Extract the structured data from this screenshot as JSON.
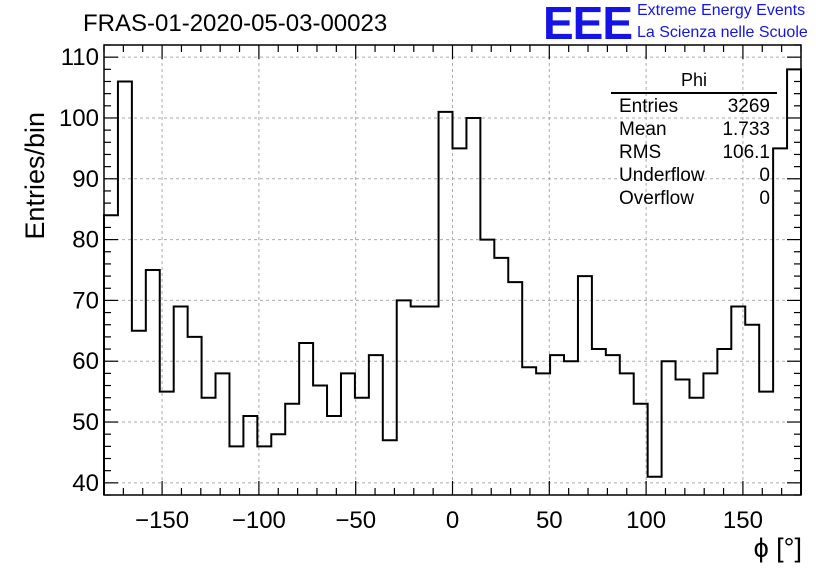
{
  "header": {
    "title": "FRAS-01-2020-05-03-00023",
    "logo_text": "EEE",
    "logo_line1": "Extreme Energy Events",
    "logo_line2": "La Scienza nelle Scuole",
    "logo_color": "#1414e6"
  },
  "stats": {
    "name": "Phi",
    "rows": [
      {
        "label": "Entries",
        "value": "3269"
      },
      {
        "label": "Mean",
        "value": "1.733"
      },
      {
        "label": "RMS",
        "value": "106.1"
      },
      {
        "label": "Underflow",
        "value": "0"
      },
      {
        "label": "Overflow",
        "value": "0"
      }
    ]
  },
  "chart_data": {
    "type": "histogram",
    "xlabel": "ϕ [°]",
    "ylabel": "Entries/bin",
    "xlim": [
      -180,
      180
    ],
    "ylim": [
      38,
      112
    ],
    "bin_width": 7.2,
    "bin_edges_start": -180,
    "values": [
      84,
      106,
      65,
      75,
      55,
      69,
      64,
      54,
      58,
      46,
      51,
      46,
      48,
      53,
      63,
      56,
      51,
      58,
      54,
      61,
      47,
      70,
      69,
      69,
      101,
      95,
      100,
      80,
      77,
      73,
      59,
      58,
      61,
      60,
      74,
      62,
      61,
      58,
      53,
      41,
      60,
      57,
      54,
      58,
      62,
      69,
      66,
      55,
      95,
      108
    ],
    "x_ticks": [
      -150,
      -100,
      -50,
      0,
      50,
      100,
      150
    ],
    "x_tick_labels": [
      "−150",
      "−100",
      "−50",
      "0",
      "50",
      "100",
      "150"
    ],
    "y_ticks": [
      40,
      50,
      60,
      70,
      80,
      90,
      100,
      110
    ],
    "y_tick_labels": [
      "40",
      "50",
      "60",
      "70",
      "80",
      "90",
      "100",
      "110"
    ],
    "grid": true,
    "line_color": "#000000",
    "grid_color": "#aaaaaa"
  }
}
